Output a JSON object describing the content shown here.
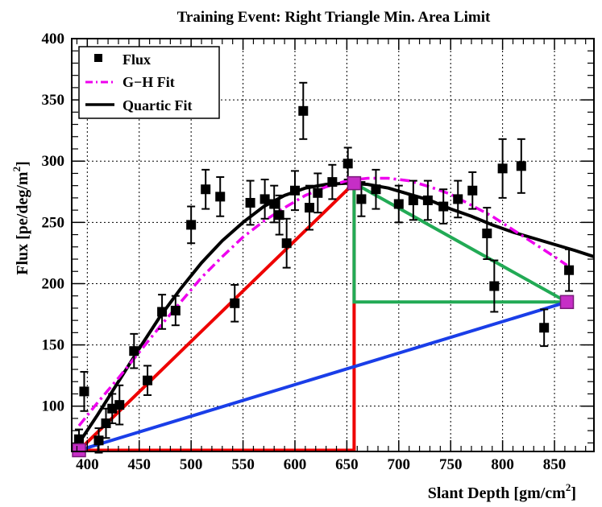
{
  "chart_data": {
    "type": "scatter",
    "title": "Training Event: Right Triangle Min. Area Limit",
    "xlabel": "Slant Depth  [gm/cm",
    "xlabel_sup": "2",
    "xlabel_tail": "]",
    "ylabel": "Flux  [pe/deg/m",
    "ylabel_sup": "2",
    "ylabel_tail": "]",
    "xlim": [
      385,
      888
    ],
    "ylim": [
      63,
      400
    ],
    "grid": true,
    "x_ticks": [
      400,
      450,
      500,
      550,
      600,
      650,
      700,
      750,
      800,
      850
    ],
    "y_ticks": [
      100,
      150,
      200,
      250,
      300,
      350,
      400
    ],
    "legend": {
      "placement": "top-left",
      "entries": [
        {
          "label": "Flux",
          "style": "marker",
          "color": "#000000"
        },
        {
          "label": "G−H Fit",
          "style": "dashdot",
          "color": "#ee00ee"
        },
        {
          "label": "Quartic Fit",
          "style": "line",
          "color": "#000000"
        }
      ]
    },
    "series": [
      {
        "name": "Flux",
        "kind": "points",
        "color": "#000000",
        "points": [
          {
            "x": 392,
            "y": 73,
            "err": 8
          },
          {
            "x": 397,
            "y": 112,
            "err": 16
          },
          {
            "x": 411,
            "y": 72,
            "err": 10
          },
          {
            "x": 418,
            "y": 86,
            "err": 12
          },
          {
            "x": 424,
            "y": 98,
            "err": 12
          },
          {
            "x": 431,
            "y": 101,
            "err": 16
          },
          {
            "x": 445,
            "y": 145,
            "err": 14
          },
          {
            "x": 458,
            "y": 121,
            "err": 12
          },
          {
            "x": 472,
            "y": 177,
            "err": 14
          },
          {
            "x": 485,
            "y": 178,
            "err": 12
          },
          {
            "x": 500,
            "y": 248,
            "err": 15
          },
          {
            "x": 514,
            "y": 277,
            "err": 16
          },
          {
            "x": 528,
            "y": 271,
            "err": 16
          },
          {
            "x": 542,
            "y": 184,
            "err": 15
          },
          {
            "x": 557,
            "y": 266,
            "err": 18
          },
          {
            "x": 571,
            "y": 269,
            "err": 16
          },
          {
            "x": 580,
            "y": 265,
            "err": 15
          },
          {
            "x": 585,
            "y": 256,
            "err": 16
          },
          {
            "x": 592,
            "y": 233,
            "err": 20
          },
          {
            "x": 600,
            "y": 276,
            "err": 16
          },
          {
            "x": 608,
            "y": 341,
            "err": 23
          },
          {
            "x": 614,
            "y": 262,
            "err": 18
          },
          {
            "x": 622,
            "y": 274,
            "err": 16
          },
          {
            "x": 636,
            "y": 283,
            "err": 14
          },
          {
            "x": 651,
            "y": 298,
            "err": 13
          },
          {
            "x": 664,
            "y": 269,
            "err": 14
          },
          {
            "x": 678,
            "y": 277,
            "err": 16
          },
          {
            "x": 700,
            "y": 265,
            "err": 15
          },
          {
            "x": 714,
            "y": 268,
            "err": 16
          },
          {
            "x": 728,
            "y": 268,
            "err": 16
          },
          {
            "x": 743,
            "y": 263,
            "err": 14
          },
          {
            "x": 757,
            "y": 269,
            "err": 15
          },
          {
            "x": 771,
            "y": 276,
            "err": 15
          },
          {
            "x": 785,
            "y": 241,
            "err": 21
          },
          {
            "x": 792,
            "y": 198,
            "err": 21
          },
          {
            "x": 800,
            "y": 294,
            "err": 24
          },
          {
            "x": 818,
            "y": 296,
            "err": 22
          },
          {
            "x": 840,
            "y": 164,
            "err": 15
          },
          {
            "x": 864,
            "y": 211,
            "err": 17
          }
        ]
      },
      {
        "name": "Quartic Fit",
        "kind": "curve",
        "color": "#000000",
        "x": [
          392,
          410,
          430,
          450,
          470,
          490,
          510,
          530,
          550,
          570,
          590,
          610,
          630,
          650,
          670,
          690,
          710,
          730,
          750,
          770,
          790,
          810,
          830,
          850,
          870,
          888
        ],
        "y": [
          70,
          93,
          120,
          147,
          173,
          196,
          217,
          235,
          250,
          263,
          272,
          278,
          281,
          282,
          281,
          278,
          273,
          268,
          261,
          255,
          248,
          242,
          237,
          232,
          227,
          222
        ]
      },
      {
        "name": "G−H Fit",
        "kind": "curve",
        "color": "#ee00ee",
        "x": [
          392,
          410,
          430,
          450,
          470,
          490,
          510,
          530,
          550,
          570,
          590,
          610,
          630,
          650,
          670,
          690,
          710,
          730,
          750,
          770,
          790,
          810,
          830,
          850,
          862
        ],
        "y": [
          84,
          103,
          123,
          144,
          165,
          185,
          205,
          222,
          238,
          251,
          262,
          272,
          279,
          284,
          286,
          286,
          284,
          279,
          273,
          264,
          255,
          244,
          233,
          222,
          215
        ]
      }
    ],
    "triangles": [
      {
        "name": "red-triangle",
        "color": "#ee0000",
        "vertices": [
          [
            392,
            64
          ],
          [
            657,
            282
          ],
          [
            657,
            64
          ]
        ]
      },
      {
        "name": "green-triangle",
        "color": "#22aa55",
        "vertices": [
          [
            657,
            282
          ],
          [
            862,
            185
          ],
          [
            657,
            185
          ]
        ]
      },
      {
        "name": "blue-line",
        "color": "#1a3ee8",
        "vertices": [
          [
            392,
            64
          ],
          [
            862,
            185
          ]
        ],
        "open": true
      }
    ],
    "key_points": [
      {
        "x": 392,
        "y": 64,
        "color": "#c62ec6"
      },
      {
        "x": 657,
        "y": 282,
        "color": "#c62ec6"
      },
      {
        "x": 862,
        "y": 185,
        "color": "#c62ec6"
      }
    ]
  }
}
